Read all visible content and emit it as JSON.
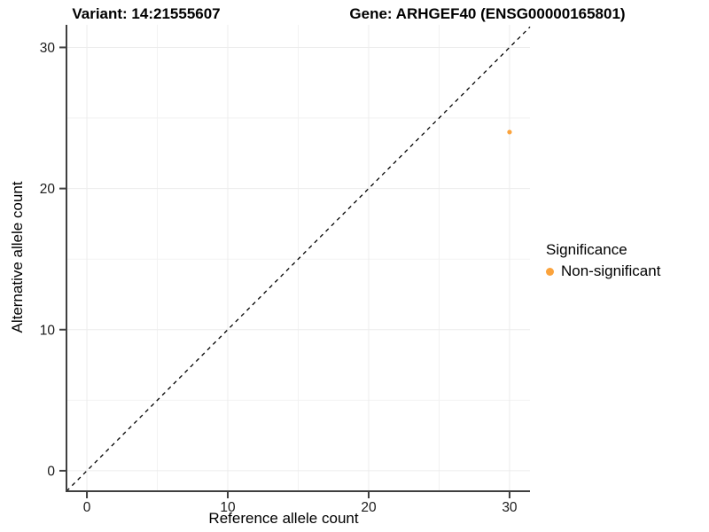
{
  "titles": {
    "variant": "Variant: 14:21555607",
    "gene": "Gene: ARHGEF40 (ENSG00000165801)"
  },
  "chart_data": {
    "type": "scatter",
    "title_left": "Variant: 14:21555607",
    "title_right": "Gene: ARHGEF40 (ENSG00000165801)",
    "xlabel": "Reference allele count",
    "ylabel": "Alternative allele count",
    "xlim": [
      -1.45,
      31.45
    ],
    "ylim": [
      -1.45,
      31.6
    ],
    "x_major_ticks": [
      0,
      10,
      20,
      30
    ],
    "y_major_ticks": [
      0,
      10,
      20,
      30
    ],
    "x_minor_ticks": [
      5,
      15,
      25
    ],
    "y_minor_ticks": [
      5,
      15,
      25
    ],
    "grid": "on",
    "identity_line": {
      "slope": 1,
      "intercept": 0,
      "style": "dashed",
      "color": "#000000"
    },
    "series": [
      {
        "name": "Non-significant",
        "color": "#FBA33C",
        "points": [
          {
            "x": 30,
            "y": 24
          }
        ]
      }
    ],
    "legend": {
      "title": "Significance",
      "position": "right",
      "entries": [
        {
          "label": "Non-significant",
          "color": "#FBA33C"
        }
      ]
    },
    "colors": {
      "axis_line": "#3F3F3F",
      "tick_label": "#1A1A1A",
      "grid_major": "#ECECEC",
      "grid_minor": "#F2F2F2",
      "background": "#FFFFFF",
      "accent_point": "#FBA33C"
    }
  }
}
